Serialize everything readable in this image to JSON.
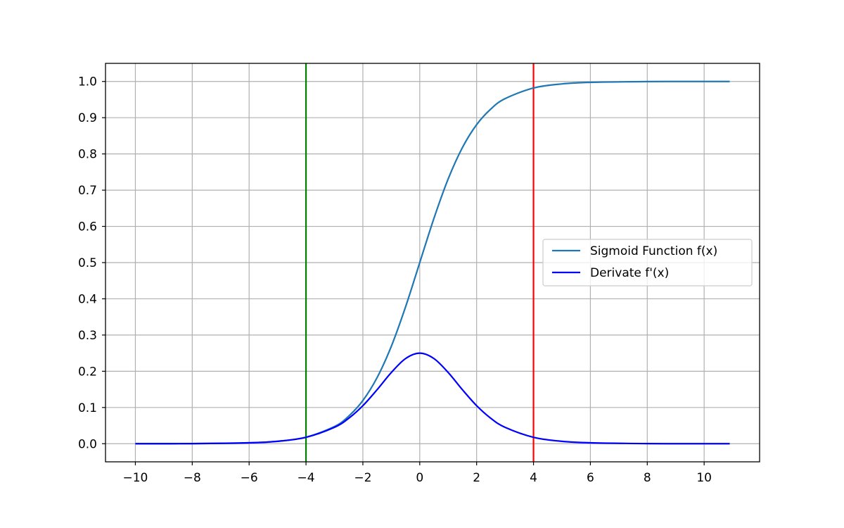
{
  "chart_data": {
    "type": "line",
    "title": "",
    "xlabel": "",
    "ylabel": "",
    "xlim": [
      -11.05,
      11.95
    ],
    "ylim": [
      -0.05,
      1.05
    ],
    "xticks": [
      -10,
      -8,
      -6,
      -4,
      -2,
      0,
      2,
      4,
      6,
      8,
      10
    ],
    "xtick_labels": [
      "−10",
      "−8",
      "−6",
      "−4",
      "−2",
      "0",
      "2",
      "4",
      "6",
      "8",
      "10"
    ],
    "yticks": [
      0.0,
      0.1,
      0.2,
      0.3,
      0.4,
      0.5,
      0.6,
      0.7,
      0.8,
      0.9,
      1.0
    ],
    "ytick_labels": [
      "0.0",
      "0.1",
      "0.2",
      "0.3",
      "0.4",
      "0.5",
      "0.6",
      "0.7",
      "0.8",
      "0.9",
      "1.0"
    ],
    "grid": true,
    "legend_position": "center-right",
    "series": [
      {
        "name": "Sigmoid Function f(x)",
        "color": "#1f77b4",
        "x": [
          -10,
          -8,
          -6,
          -5,
          -4,
          -3,
          -2.5,
          -2,
          -1.5,
          -1,
          -0.5,
          0,
          0.5,
          1,
          1.5,
          2,
          2.5,
          3,
          4,
          5,
          6,
          8,
          10,
          10.9
        ],
        "y": [
          0.0,
          0.0003,
          0.0025,
          0.0067,
          0.018,
          0.0474,
          0.0759,
          0.1192,
          0.1824,
          0.2689,
          0.3775,
          0.5,
          0.6225,
          0.7311,
          0.8176,
          0.8808,
          0.9241,
          0.9526,
          0.982,
          0.9933,
          0.9975,
          0.9997,
          1.0,
          1.0
        ]
      },
      {
        "name": "Derivate f'(x)",
        "color": "#0000ff",
        "x": [
          -10,
          -8,
          -6,
          -5,
          -4,
          -3,
          -2.5,
          -2,
          -1.5,
          -1,
          -0.5,
          0,
          0.5,
          1,
          1.5,
          2,
          2.5,
          3,
          4,
          5,
          6,
          8,
          10,
          10.9
        ],
        "y": [
          0.0,
          0.0003,
          0.0025,
          0.0066,
          0.0177,
          0.0452,
          0.0701,
          0.105,
          0.1491,
          0.1966,
          0.235,
          0.25,
          0.235,
          0.1966,
          0.1491,
          0.105,
          0.0701,
          0.0452,
          0.0177,
          0.0066,
          0.0025,
          0.0003,
          0.0,
          0.0
        ]
      }
    ],
    "vlines": [
      {
        "x": -4,
        "color": "#008000"
      },
      {
        "x": 4,
        "color": "#ff0000"
      }
    ]
  }
}
